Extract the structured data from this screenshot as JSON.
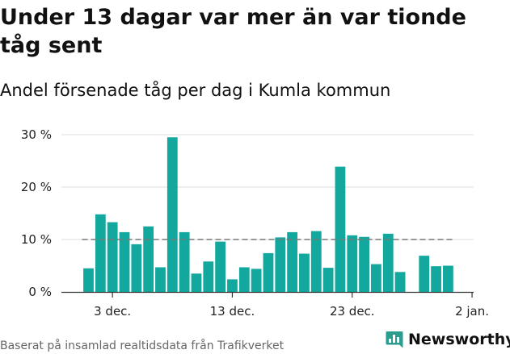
{
  "title": "Under 13 dagar var mer än var tionde tåg sent",
  "subtitle": "Andel försenade tåg per dag i Kumla kommun",
  "source": "Baserat på insamlad realtidsdata från Trafikverket",
  "brand": {
    "name": "Newsworthy",
    "color": "#2a9d8f",
    "icon": "bar-chart-logo-icon"
  },
  "chart_data": {
    "type": "bar",
    "x": [
      "1 dec.",
      "2 dec.",
      "3 dec.",
      "4 dec.",
      "5 dec.",
      "6 dec.",
      "7 dec.",
      "8 dec.",
      "9 dec.",
      "10 dec.",
      "11 dec.",
      "12 dec.",
      "13 dec.",
      "14 dec.",
      "15 dec.",
      "16 dec.",
      "17 dec.",
      "18 dec.",
      "19 dec.",
      "20 dec.",
      "21 dec.",
      "22 dec.",
      "23 dec.",
      "24 dec.",
      "25 dec.",
      "26 dec.",
      "27 dec.",
      "28 dec.",
      "29 dec.",
      "30 dec.",
      "31 dec."
    ],
    "values": [
      4.5,
      14.8,
      13.3,
      11.4,
      9.1,
      12.5,
      4.7,
      29.5,
      11.4,
      3.5,
      5.8,
      9.6,
      2.4,
      4.7,
      4.4,
      7.4,
      10.4,
      11.4,
      7.3,
      11.6,
      4.6,
      23.9,
      10.8,
      10.5,
      5.3,
      11.1,
      3.8,
      null,
      6.9,
      4.9,
      5.0
    ],
    "xticks": [
      {
        "label": "3 dec.",
        "index": 2
      },
      {
        "label": "13 dec.",
        "index": 12
      },
      {
        "label": "23 dec.",
        "index": 22
      },
      {
        "label": "2 jan.",
        "index": 32
      }
    ],
    "yticks": [
      {
        "label": "0 %",
        "value": 0
      },
      {
        "label": "10 %",
        "value": 10
      },
      {
        "label": "20 %",
        "value": 20
      },
      {
        "label": "30 %",
        "value": 30
      }
    ],
    "ylim": [
      0,
      30
    ],
    "reference_line": {
      "value": 10,
      "style": "dashed"
    },
    "grid": true,
    "bar_color": "#13a89e",
    "grid_color": "#dddddd",
    "reference_color": "#777777",
    "axis_color": "#333333"
  }
}
